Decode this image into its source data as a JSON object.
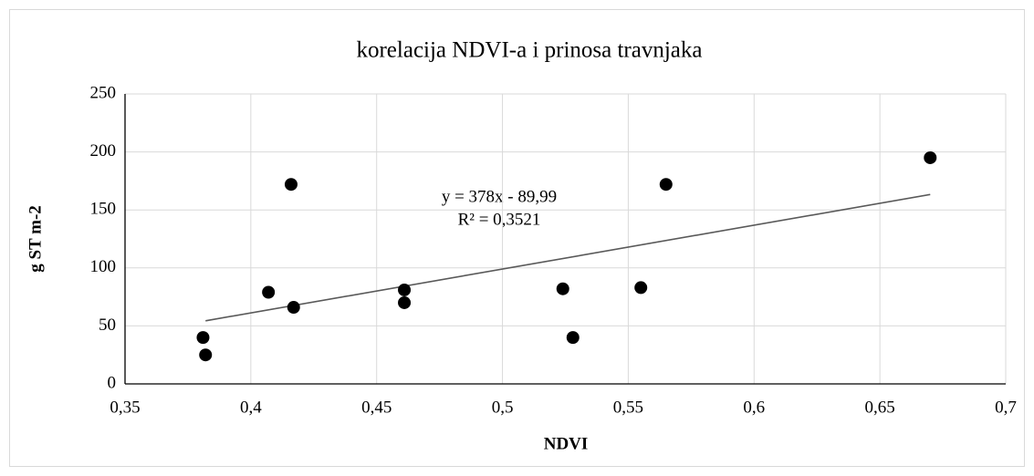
{
  "chart_data": {
    "type": "scatter",
    "title": "korelacija NDVI-a i prinosa travnjaka",
    "xlabel": "NDVI",
    "ylabel": "g ST m-2",
    "x": [
      0.381,
      0.382,
      0.407,
      0.416,
      0.417,
      0.461,
      0.461,
      0.524,
      0.528,
      0.555,
      0.565,
      0.67
    ],
    "series": [
      {
        "name": "g ST m-2",
        "color": "#000000",
        "values": [
          40,
          25,
          79,
          172,
          66,
          81,
          70,
          82,
          40,
          83,
          172,
          195
        ]
      }
    ],
    "trendline": {
      "color": "#595959",
      "x": [
        0.382,
        0.67
      ],
      "y": [
        54.4,
        163.3
      ]
    },
    "annotations": [
      "y = 378x - 89,99",
      "R² = 0,3521"
    ],
    "xlim": [
      0.35,
      0.7
    ],
    "xticks": [
      {
        "value": 0.35,
        "label": "0,35"
      },
      {
        "value": 0.4,
        "label": "0,4"
      },
      {
        "value": 0.45,
        "label": "0,45"
      },
      {
        "value": 0.5,
        "label": "0,5"
      },
      {
        "value": 0.55,
        "label": "0,55"
      },
      {
        "value": 0.6,
        "label": "0,6"
      },
      {
        "value": 0.65,
        "label": "0,65"
      },
      {
        "value": 0.7,
        "label": "0,7"
      }
    ],
    "ylim": [
      0,
      250
    ],
    "yticks": [
      0,
      50,
      100,
      150,
      200,
      250
    ],
    "grid": true
  }
}
